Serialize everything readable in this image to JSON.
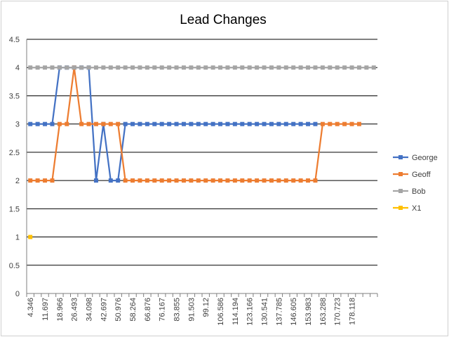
{
  "chart_data": {
    "type": "line",
    "title": "Lead Changes",
    "xlabel": "",
    "ylabel": "",
    "ylim": [
      0,
      4.5
    ],
    "y_ticks": [
      0,
      0.5,
      1,
      1.5,
      2,
      2.5,
      3,
      3.5,
      4,
      4.5
    ],
    "grid": true,
    "legend_position": "right",
    "x_tick_labels": [
      "4.346",
      "11.697",
      "18.966",
      "26.493",
      "34.098",
      "42.697",
      "50.976",
      "58.264",
      "66.876",
      "76.167",
      "83.855",
      "91.503",
      "99.12",
      "106.586",
      "114.194",
      "123.166",
      "130.541",
      "137.785",
      "146.605",
      "153.983",
      "163.288",
      "170.723",
      "178.118"
    ],
    "x_count": 48,
    "series": [
      {
        "name": "George",
        "color": "#4472C4",
        "values": [
          3,
          3,
          3,
          3,
          4,
          4,
          4,
          4,
          4,
          2,
          3,
          2,
          2,
          3,
          3,
          3,
          3,
          3,
          3,
          3,
          3,
          3,
          3,
          3,
          3,
          3,
          3,
          3,
          3,
          3,
          3,
          3,
          3,
          3,
          3,
          3,
          3,
          3,
          3,
          3
        ]
      },
      {
        "name": "Geoff",
        "color": "#ED7D31",
        "values": [
          2,
          2,
          2,
          2,
          3,
          3,
          4,
          3,
          3,
          3,
          3,
          3,
          3,
          2,
          2,
          2,
          2,
          2,
          2,
          2,
          2,
          2,
          2,
          2,
          2,
          2,
          2,
          2,
          2,
          2,
          2,
          2,
          2,
          2,
          2,
          2,
          2,
          2,
          2,
          2,
          3,
          3,
          3,
          3,
          3,
          3
        ]
      },
      {
        "name": "Bob",
        "color": "#A5A5A5",
        "values": [
          4,
          4,
          4,
          4,
          4,
          4,
          4,
          4,
          4,
          4,
          4,
          4,
          4,
          4,
          4,
          4,
          4,
          4,
          4,
          4,
          4,
          4,
          4,
          4,
          4,
          4,
          4,
          4,
          4,
          4,
          4,
          4,
          4,
          4,
          4,
          4,
          4,
          4,
          4,
          4,
          4,
          4,
          4,
          4,
          4,
          4,
          4,
          4
        ]
      },
      {
        "name": "X1",
        "color": "#FFC000",
        "values": [
          1
        ]
      }
    ]
  }
}
